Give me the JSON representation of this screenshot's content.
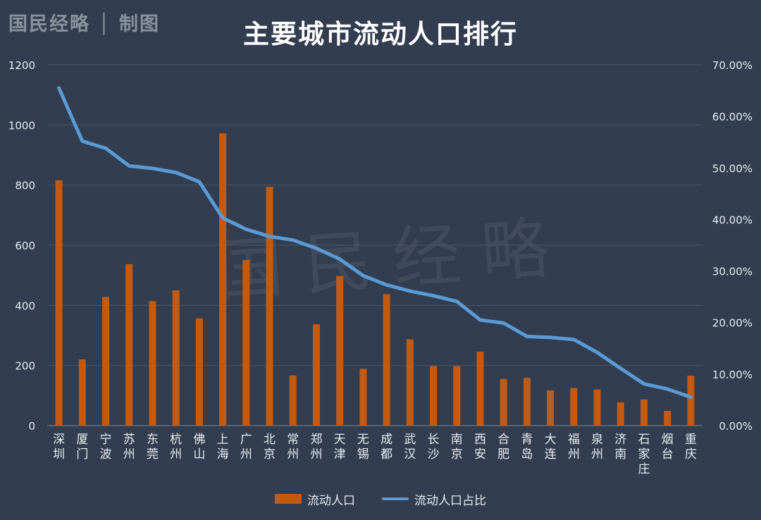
{
  "header": {
    "brand": "国民经略 │ 制图",
    "title": "主要城市流动人口排行",
    "watermark": "国民经略"
  },
  "colors": {
    "background": "#323d4f",
    "bar": "#c45a10",
    "line": "#5b9bd5",
    "grid": "#4a5566",
    "text": "#e8ecf2"
  },
  "legend": {
    "bar_label": "流动人口",
    "line_label": "流动人口占比"
  },
  "chart_data": {
    "type": "bar",
    "title": "主要城市流动人口排行",
    "categories": [
      "深圳",
      "厦门",
      "宁波",
      "苏州",
      "东莞",
      "杭州",
      "佛山",
      "上海",
      "广州",
      "北京",
      "常州",
      "郑州",
      "天津",
      "无锡",
      "成都",
      "武汉",
      "长沙",
      "南京",
      "西安",
      "合肥",
      "青岛",
      "大连",
      "福州",
      "泉州",
      "济南",
      "石家庄",
      "烟台",
      "重庆"
    ],
    "series": [
      {
        "name": "流动人口",
        "type": "bar",
        "axis": "left",
        "values": [
          816,
          220,
          428,
          537,
          414,
          450,
          357,
          972,
          551,
          794,
          167,
          337,
          498,
          189,
          437,
          287,
          198,
          198,
          246,
          155,
          159,
          117,
          125,
          120,
          77,
          87,
          49,
          166
        ]
      },
      {
        "name": "流动人口占比",
        "type": "line",
        "axis": "right",
        "values": [
          65.5,
          55.2,
          53.8,
          50.4,
          49.9,
          49.1,
          47.3,
          40.3,
          38.1,
          36.7,
          36.0,
          34.4,
          32.3,
          29.1,
          27.3,
          26.1,
          25.2,
          24.1,
          20.5,
          19.9,
          17.3,
          17.1,
          16.7,
          14.2,
          11.1,
          8.1,
          7.1,
          5.5
        ]
      }
    ],
    "ylim_left": [
      0,
      1200
    ],
    "yticks_left": [
      "0",
      "200",
      "400",
      "600",
      "800",
      "1000",
      "1200"
    ],
    "ylim_right": [
      0,
      70
    ],
    "yticks_right": [
      "0.00%",
      "10.00%",
      "20.00%",
      "30.00%",
      "40.00%",
      "50.00%",
      "60.00%",
      "70.00%"
    ],
    "grid": true,
    "legend_position": "bottom"
  }
}
